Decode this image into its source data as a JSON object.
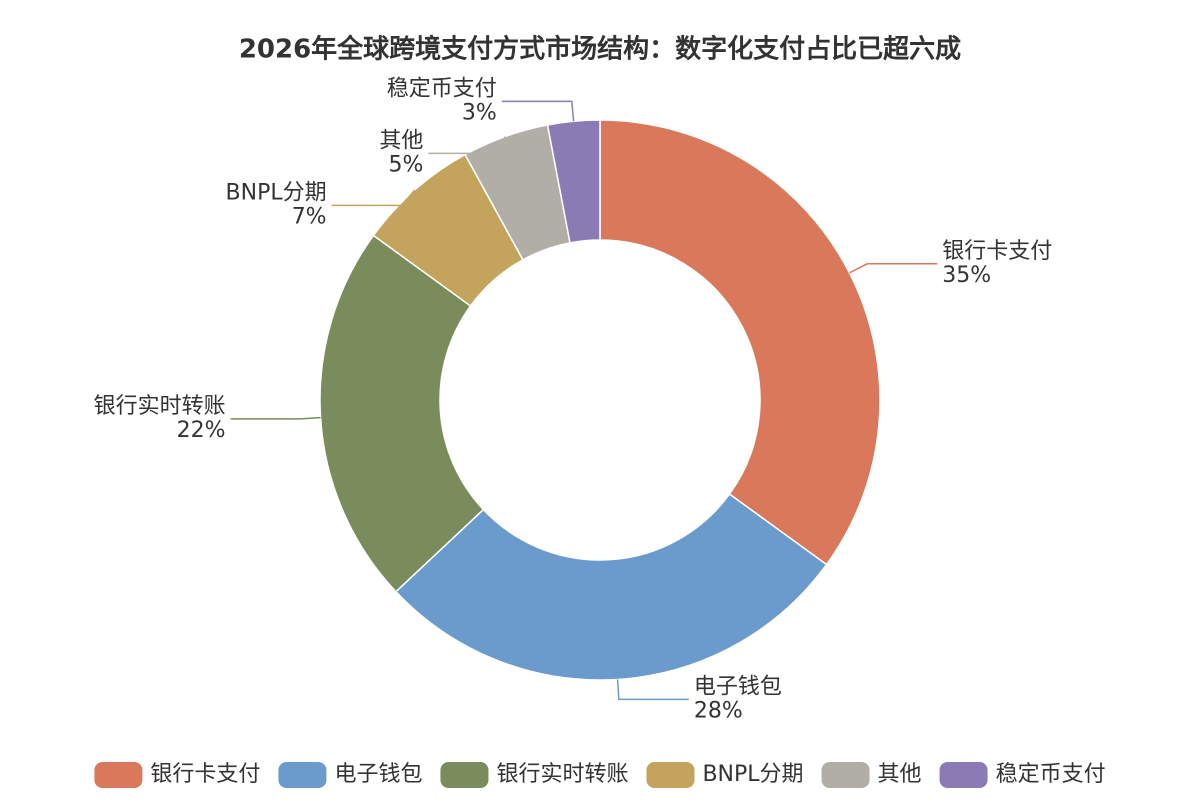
{
  "chart_data": {
    "type": "donut",
    "title": "2026年全球跨境支付方式市场结构：数字化支付占比已超六成",
    "categories": [
      "银行卡支付",
      "电子钱包",
      "银行实时转账",
      "BNPL分期",
      "其他",
      "稳定币支付"
    ],
    "values": [
      35,
      28,
      22,
      7,
      5,
      3
    ],
    "value_labels": [
      "35%",
      "28%",
      "22%",
      "7%",
      "5%",
      "3%"
    ],
    "colors": [
      "#d9785a",
      "#6b9bcc",
      "#7a8c5c",
      "#c4a35c",
      "#b0aea6",
      "#8b7bb5"
    ],
    "legend": "bottom"
  }
}
